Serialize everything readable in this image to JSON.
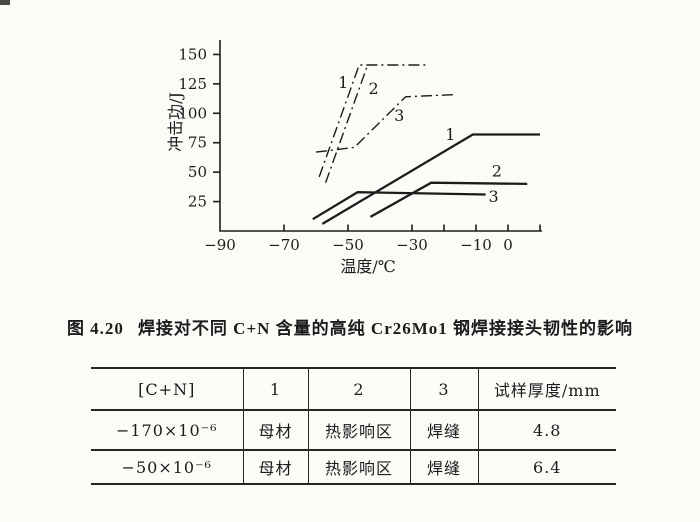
{
  "page": {
    "background": "#fbfbf8",
    "ink": "#1c1c1c"
  },
  "chart_data": {
    "type": "line",
    "title": "",
    "xlabel": "温度/℃",
    "ylabel": "冲击功/J",
    "xlim": [
      -90,
      11
    ],
    "ylim": [
      0,
      165
    ],
    "grid": false,
    "legend_position": "none (curves labeled inline with numbers)",
    "x_axis": {
      "tick_values": [
        -70,
        -50,
        -30,
        -20,
        -10,
        0,
        10
      ],
      "labeled_ticks": [
        {
          "value": -90,
          "label": "−90"
        },
        {
          "value": -70,
          "label": "−70"
        },
        {
          "value": -50,
          "label": "−50"
        },
        {
          "value": -30,
          "label": "−30"
        },
        {
          "value": -10,
          "label": "−10"
        },
        {
          "value": 0,
          "label": "0"
        }
      ]
    },
    "y_axis": {
      "tick_values": [
        25,
        50,
        75,
        100,
        125,
        150
      ]
    },
    "series": [
      {
        "label": "1",
        "style": "dashdot",
        "points": [
          [
            -59,
            46
          ],
          [
            -46.5,
            141
          ],
          [
            -25.5,
            141
          ]
        ]
      },
      {
        "label": "2",
        "style": "dashdot",
        "points": [
          [
            -57,
            41
          ],
          [
            -44,
            140
          ]
        ]
      },
      {
        "label": "3",
        "style": "dashdot",
        "points": [
          [
            -60,
            67
          ],
          [
            -48,
            71
          ],
          [
            -32,
            114
          ],
          [
            -16,
            116
          ]
        ]
      },
      {
        "label": "1",
        "style": "solid",
        "points": [
          [
            -58,
            6
          ],
          [
            -11,
            82
          ],
          [
            10,
            82
          ]
        ]
      },
      {
        "label": "2",
        "style": "solid",
        "points": [
          [
            -43,
            12
          ],
          [
            -24,
            41
          ],
          [
            6,
            40
          ]
        ]
      },
      {
        "label": "3",
        "style": "solid",
        "points": [
          [
            -61,
            10
          ],
          [
            -47,
            33
          ],
          [
            -7,
            31
          ]
        ]
      }
    ],
    "annotations": [
      {
        "text": "1",
        "series": "dashdot-1",
        "x": -51.5,
        "y": 126
      },
      {
        "text": "2",
        "series": "dashdot-2",
        "x": -42,
        "y": 121
      },
      {
        "text": "3",
        "series": "dashdot-3",
        "x": -34,
        "y": 98
      },
      {
        "text": "1",
        "series": "solid-1",
        "x": -18,
        "y": 82
      },
      {
        "text": "2",
        "series": "solid-2",
        "x": -3.5,
        "y": 51
      },
      {
        "text": "3",
        "series": "solid-3",
        "x": -4.5,
        "y": 29.5
      }
    ]
  },
  "caption": {
    "label": "图 4.20",
    "text": "焊接对不同 C+N 含量的高纯 Cr26Mo1 钢焊接接头韧性的影响"
  },
  "table": {
    "headers": [
      "[C+N]",
      "1",
      "2",
      "3",
      "试样厚度/mm"
    ],
    "rows": [
      [
        "−170×10⁻⁶",
        "母材",
        "热影响区",
        "焊缝",
        "4.8"
      ],
      [
        "−50×10⁻⁶",
        "母材",
        "热影响区",
        "焊缝",
        "6.4"
      ]
    ]
  }
}
